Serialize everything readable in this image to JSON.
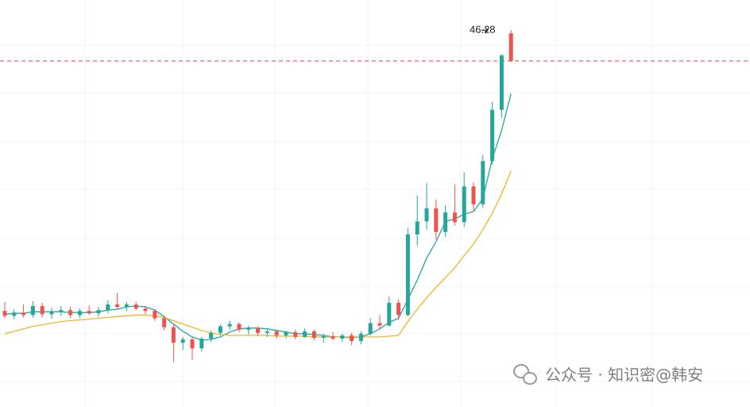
{
  "chart_data": {
    "type": "candlestick",
    "ylim": [
      0,
      50
    ],
    "up_color": "#26a69a",
    "down_color": "#ef5350",
    "open": [
      11.8,
      11.2,
      11.6,
      11.3,
      12.4,
      11.4,
      11.7,
      11.9,
      11.3,
      11.8,
      11.5,
      11.9,
      12.6,
      12.3,
      12.6,
      12.1,
      11.8,
      10.9,
      9.8,
      7.9,
      8.3,
      7.2,
      8.4,
      9.1,
      9.9,
      10.2,
      9.5,
      9.7,
      9.1,
      9.3,
      8.8,
      9.2,
      8.6,
      9.3,
      8.5,
      8.7,
      8.4,
      8.8,
      8.1,
      9.0,
      10.3,
      10.0,
      12.8,
      11.3,
      21.2,
      22.8,
      24.4,
      21.5,
      23.9,
      22.7,
      27.1,
      24.9,
      30.2,
      36.5,
      45.9
    ],
    "high": [
      12.9,
      12.0,
      12.6,
      13.0,
      12.8,
      12.2,
      12.4,
      12.3,
      12.1,
      12.5,
      12.3,
      13.1,
      14.0,
      12.9,
      12.9,
      12.4,
      12.0,
      11.2,
      10.2,
      8.6,
      8.6,
      8.6,
      9.4,
      10.2,
      10.6,
      10.4,
      10.0,
      9.9,
      9.6,
      9.5,
      9.4,
      9.5,
      9.7,
      9.5,
      9.0,
      9.2,
      9.0,
      9.1,
      9.3,
      10.9,
      11.3,
      13.6,
      13.2,
      22.0,
      26.0,
      27.5,
      25.5,
      24.8,
      27.4,
      28.8,
      27.6,
      31.0,
      37.5,
      43.3,
      46.28
    ],
    "low": [
      10.9,
      10.8,
      11.0,
      11.0,
      11.0,
      10.8,
      11.2,
      10.9,
      10.9,
      11.3,
      11.1,
      11.5,
      12.0,
      11.8,
      11.9,
      11.4,
      10.6,
      9.4,
      5.5,
      7.0,
      5.8,
      6.8,
      8.0,
      8.8,
      9.5,
      9.2,
      8.9,
      8.8,
      8.6,
      8.4,
      8.4,
      8.3,
      8.5,
      8.2,
      7.9,
      8.2,
      8.0,
      7.6,
      7.7,
      8.8,
      9.6,
      9.9,
      10.7,
      11.1,
      19.8,
      21.8,
      20.6,
      20.9,
      22.3,
      22.1,
      24.1,
      24.5,
      29.8,
      35.5,
      42.4
    ],
    "close": [
      11.2,
      11.6,
      11.3,
      12.4,
      11.4,
      11.7,
      11.9,
      11.3,
      11.8,
      11.5,
      11.9,
      12.6,
      12.3,
      12.6,
      12.1,
      11.8,
      10.9,
      9.8,
      7.9,
      8.3,
      7.2,
      8.4,
      9.1,
      9.9,
      10.2,
      9.5,
      9.7,
      9.1,
      9.3,
      8.8,
      9.2,
      8.6,
      9.3,
      8.5,
      8.7,
      8.4,
      8.8,
      8.1,
      9.0,
      10.3,
      10.0,
      12.8,
      11.3,
      21.2,
      22.8,
      24.4,
      21.5,
      23.9,
      22.7,
      27.1,
      24.9,
      30.2,
      36.5,
      43.2,
      42.5
    ],
    "series": [
      {
        "color": "#26a69a",
        "values": [
          11.4,
          11.5,
          11.5,
          11.7,
          11.7,
          11.7,
          11.7,
          11.6,
          11.6,
          11.6,
          11.7,
          11.9,
          12.0,
          12.3,
          12.4,
          12.3,
          11.9,
          11.1,
          10.2,
          9.3,
          8.6,
          8.2,
          8.3,
          8.6,
          9.2,
          9.6,
          9.7,
          9.7,
          9.6,
          9.4,
          9.2,
          9.0,
          9.0,
          8.9,
          8.8,
          8.6,
          8.6,
          8.5,
          8.6,
          9.0,
          9.6,
          10.4,
          10.9,
          13.2,
          15.6,
          18.3,
          20.3,
          22.8,
          23.1,
          23.7,
          24.0,
          25.6,
          30.5,
          34.0,
          38.5
        ]
      },
      {
        "color": "#f0b429",
        "values": [
          9.0,
          9.3,
          9.6,
          9.9,
          10.1,
          10.3,
          10.5,
          10.6,
          10.7,
          10.8,
          10.9,
          11.0,
          11.1,
          11.2,
          11.3,
          11.3,
          11.2,
          11.0,
          10.6,
          10.2,
          9.8,
          9.4,
          9.1,
          8.9,
          8.8,
          8.8,
          8.8,
          8.8,
          8.8,
          8.7,
          8.7,
          8.7,
          8.7,
          8.6,
          8.6,
          8.6,
          8.6,
          8.6,
          8.6,
          8.6,
          8.6,
          8.7,
          8.8,
          10.5,
          12.0,
          13.4,
          14.7,
          15.9,
          17.1,
          18.6,
          20.0,
          21.8,
          23.8,
          26.2,
          29.0
        ]
      }
    ],
    "last_line_color": "#e0474c",
    "watermark": "公众号 · 知识密@韩安"
  }
}
